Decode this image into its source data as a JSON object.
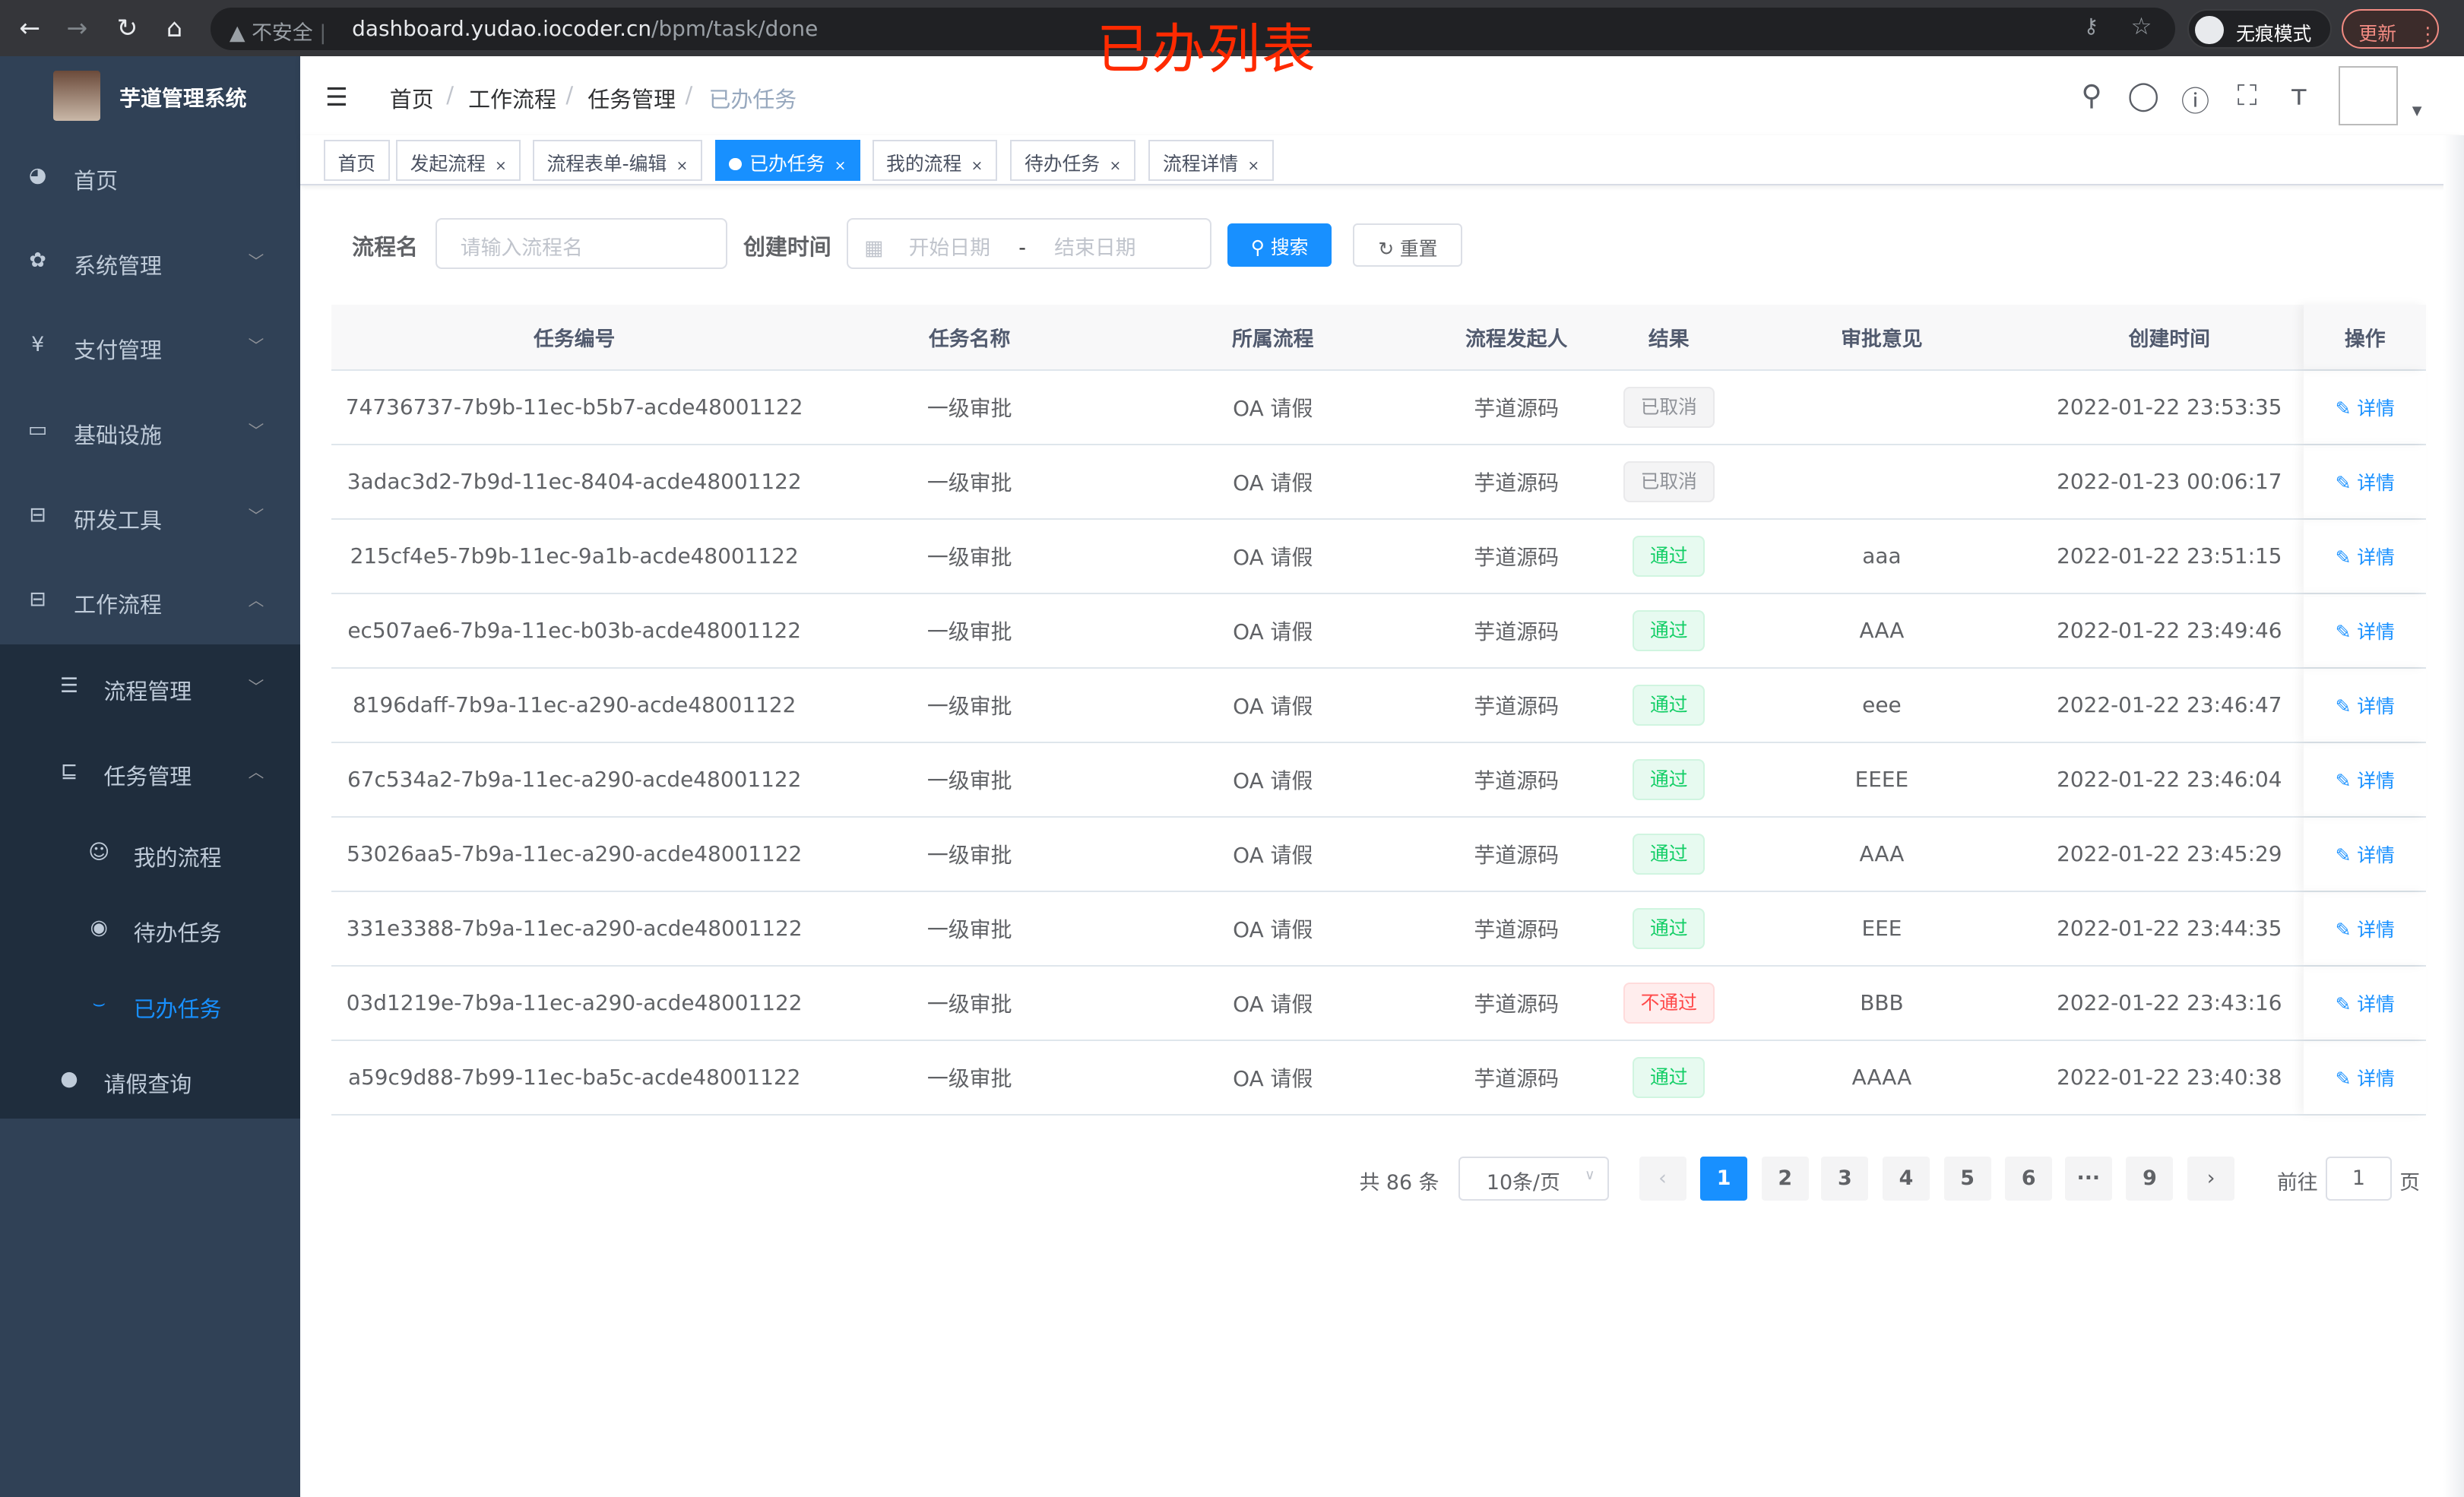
{
  "browser": {
    "url_host": "dashboard.yudao.iocoder.cn",
    "url_path": "/bpm/task/done",
    "insecure_label": "不安全",
    "incognito_label": "无痕模式",
    "update_label": "更新"
  },
  "annotation": "已办列表",
  "app": {
    "title": "芋道管理系统"
  },
  "sidebar": {
    "items": [
      {
        "label": "首页",
        "icon": "dashboard-icon"
      },
      {
        "label": "系统管理",
        "icon": "gear-icon"
      },
      {
        "label": "支付管理",
        "icon": "yen-icon"
      },
      {
        "label": "基础设施",
        "icon": "monitor-icon"
      },
      {
        "label": "研发工具",
        "icon": "toolbox-icon"
      },
      {
        "label": "工作流程",
        "icon": "toolbox-icon"
      },
      {
        "label": "流程管理",
        "icon": "list-icon"
      },
      {
        "label": "任务管理",
        "icon": "task-icon"
      },
      {
        "label": "我的流程",
        "icon": "face-icon"
      },
      {
        "label": "待办任务",
        "icon": "eye-open-icon"
      },
      {
        "label": "已办任务",
        "icon": "eye-closed-icon"
      },
      {
        "label": "请假查询",
        "icon": "user-icon"
      }
    ]
  },
  "breadcrumb": [
    "首页",
    "工作流程",
    "任务管理",
    "已办任务"
  ],
  "tags": [
    "首页",
    "发起流程",
    "流程表单-编辑",
    "已办任务",
    "我的流程",
    "待办任务",
    "流程详情"
  ],
  "search": {
    "name_label": "流程名",
    "name_placeholder": "请输入流程名",
    "time_label": "创建时间",
    "start_placeholder": "开始日期",
    "range_sep": "-",
    "end_placeholder": "结束日期",
    "search_btn": "搜索",
    "reset_btn": "重置"
  },
  "table": {
    "headers": [
      "任务编号",
      "任务名称",
      "所属流程",
      "流程发起人",
      "结果",
      "审批意见",
      "创建时间",
      "操作"
    ],
    "action_label": "详情",
    "rows": [
      {
        "id": "74736737-7b9b-11ec-b5b7-acde48001122",
        "name": "一级审批",
        "process": "OA 请假",
        "starter": "芋道源码",
        "result": "已取消",
        "status": "gray",
        "comment": "",
        "time": "2022-01-22 23:53:35"
      },
      {
        "id": "3adac3d2-7b9d-11ec-8404-acde48001122",
        "name": "一级审批",
        "process": "OA 请假",
        "starter": "芋道源码",
        "result": "已取消",
        "status": "gray",
        "comment": "",
        "time": "2022-01-23 00:06:17"
      },
      {
        "id": "215cf4e5-7b9b-11ec-9a1b-acde48001122",
        "name": "一级审批",
        "process": "OA 请假",
        "starter": "芋道源码",
        "result": "通过",
        "status": "green",
        "comment": "aaa",
        "time": "2022-01-22 23:51:15"
      },
      {
        "id": "ec507ae6-7b9a-11ec-b03b-acde48001122",
        "name": "一级审批",
        "process": "OA 请假",
        "starter": "芋道源码",
        "result": "通过",
        "status": "green",
        "comment": "AAA",
        "time": "2022-01-22 23:49:46"
      },
      {
        "id": "8196daff-7b9a-11ec-a290-acde48001122",
        "name": "一级审批",
        "process": "OA 请假",
        "starter": "芋道源码",
        "result": "通过",
        "status": "green",
        "comment": "eee",
        "time": "2022-01-22 23:46:47"
      },
      {
        "id": "67c534a2-7b9a-11ec-a290-acde48001122",
        "name": "一级审批",
        "process": "OA 请假",
        "starter": "芋道源码",
        "result": "通过",
        "status": "green",
        "comment": "EEEE",
        "time": "2022-01-22 23:46:04"
      },
      {
        "id": "53026aa5-7b9a-11ec-a290-acde48001122",
        "name": "一级审批",
        "process": "OA 请假",
        "starter": "芋道源码",
        "result": "通过",
        "status": "green",
        "comment": "AAA",
        "time": "2022-01-22 23:45:29"
      },
      {
        "id": "331e3388-7b9a-11ec-a290-acde48001122",
        "name": "一级审批",
        "process": "OA 请假",
        "starter": "芋道源码",
        "result": "通过",
        "status": "green",
        "comment": "EEE",
        "time": "2022-01-22 23:44:35"
      },
      {
        "id": "03d1219e-7b9a-11ec-a290-acde48001122",
        "name": "一级审批",
        "process": "OA 请假",
        "starter": "芋道源码",
        "result": "不通过",
        "status": "red",
        "comment": "BBB",
        "time": "2022-01-22 23:43:16"
      },
      {
        "id": "a59c9d88-7b99-11ec-ba5c-acde48001122",
        "name": "一级审批",
        "process": "OA 请假",
        "starter": "芋道源码",
        "result": "通过",
        "status": "green",
        "comment": "AAAA",
        "time": "2022-01-22 23:40:38"
      }
    ]
  },
  "pagination": {
    "total_text": "共 86 条",
    "page_size": "10条/页",
    "pages": [
      "1",
      "2",
      "3",
      "4",
      "5",
      "6",
      "···",
      "9"
    ],
    "current": "1",
    "goto_label": "前往",
    "goto_value": "1",
    "goto_suffix": "页"
  },
  "colors": {
    "primary": "#1890ff",
    "sidebar": "#304156",
    "submenu": "#1f2d3d",
    "annotation": "#ff2a00"
  }
}
